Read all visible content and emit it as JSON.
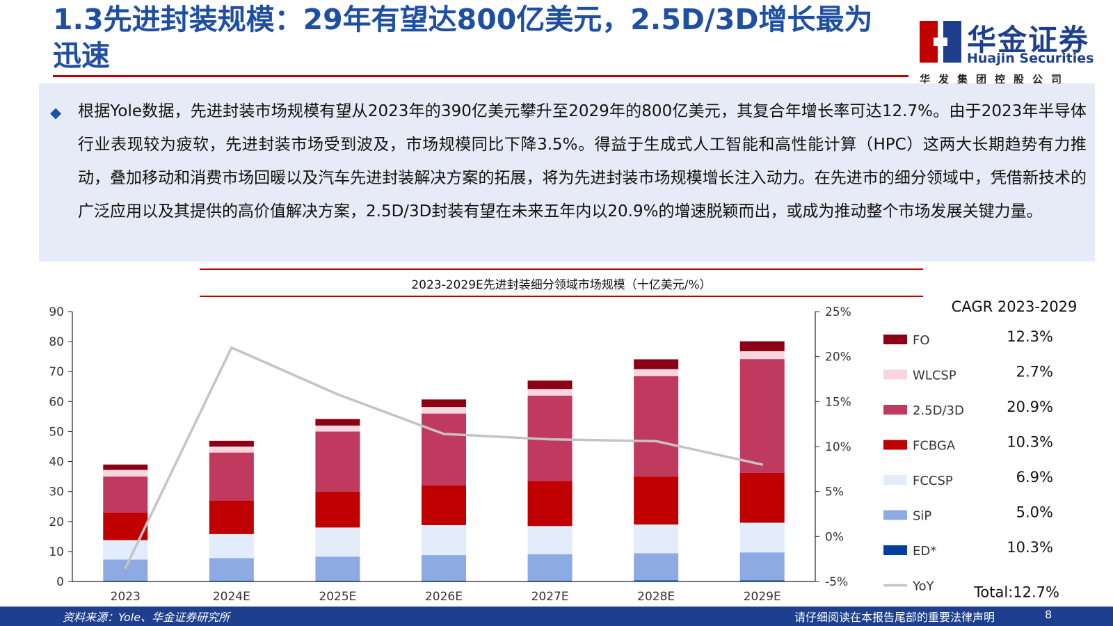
{
  "header": {
    "title": "1.3先进封装规模：29年有望达800亿美元，2.5D/3D增长最为迅速",
    "logo_cn": "华金证券",
    "logo_en": "Huajin Securities",
    "logo_sub": "华发集团控股公司",
    "brand_colors": {
      "blue": "#1d3f8e",
      "red": "#c00000"
    }
  },
  "summary": {
    "bullet": "◆",
    "text": "根据Yole数据，先进封装市场规模有望从2023年的390亿美元攀升至2029年的800亿美元，其复合年增长率可达12.7%。由于2023年半导体行业表现较为疲软，先进封装市场受到波及，市场规模同比下降3.5%。得益于生成式人工智能和高性能计算（HPC）这两大长期趋势有力推动，叠加移动和消费市场回暖以及汽车先进封装解决方案的拓展，将为先进封装市场规模增长注入动力。在先进市的细分领域中，凭借新技术的广泛应用以及其提供的高价值解决方案，2.5D/3D封装有望在未来五年内以20.9%的增速脱颖而出，或成为推动整个市场发展关键力量。"
  },
  "chart_data": {
    "type": "bar",
    "stacked": true,
    "title": "2023-2029E先进封装细分领域市场规模（十亿美元/%）",
    "categories": [
      "2023",
      "2024E",
      "2025E",
      "2026E",
      "2027E",
      "2028E",
      "2029E"
    ],
    "y_left": {
      "ylim": [
        0,
        90
      ],
      "ticks": [
        "0",
        "10",
        "20",
        "30",
        "40",
        "50",
        "60",
        "70",
        "80",
        "90"
      ]
    },
    "y_right": {
      "ylim": [
        -5,
        25
      ],
      "ticks": [
        "-5%",
        "0%",
        "5%",
        "10%",
        "15%",
        "20%",
        "25%"
      ]
    },
    "grid": false,
    "series": [
      {
        "name": "ED*",
        "color": "#003f9e",
        "values": [
          0.3,
          0.3,
          0.3,
          0.3,
          0.3,
          0.4,
          0.4
        ]
      },
      {
        "name": "SiP",
        "color": "#8eaae3",
        "values": [
          7.0,
          7.5,
          8.0,
          8.5,
          8.8,
          9.0,
          9.3
        ]
      },
      {
        "name": "FCCSP",
        "color": "#e3ecfa",
        "values": [
          6.5,
          8.0,
          9.7,
          10.0,
          9.4,
          9.6,
          9.9
        ]
      },
      {
        "name": "FCBGA",
        "color": "#c00000",
        "values": [
          9.2,
          11.2,
          12.0,
          13.2,
          15.0,
          16.0,
          16.6
        ]
      },
      {
        "name": "2.5D/3D",
        "color": "#c0395f",
        "values": [
          12.0,
          16.0,
          20.0,
          24.0,
          28.5,
          33.5,
          38.0
        ]
      },
      {
        "name": "WLCSP",
        "color": "#f8d6e0",
        "values": [
          2.2,
          2.0,
          2.0,
          2.2,
          2.2,
          2.3,
          2.6
        ]
      },
      {
        "name": "FO",
        "color": "#8b0015",
        "values": [
          1.8,
          1.9,
          2.2,
          2.5,
          2.8,
          3.3,
          3.3
        ]
      }
    ],
    "line": {
      "name": "YoY",
      "color": "#c4c4c4",
      "axis": "right",
      "values": [
        -3.5,
        21.0,
        15.8,
        11.4,
        10.8,
        10.6,
        8.0
      ]
    },
    "legend": {
      "placement": "right",
      "cagr_title": "CAGR 2023-2029",
      "items": [
        {
          "name": "FO",
          "color": "#8b0015",
          "cagr": "12.3%"
        },
        {
          "name": "WLCSP",
          "color": "#f8d6e0",
          "cagr": "2.7%"
        },
        {
          "name": "2.5D/3D",
          "color": "#c0395f",
          "cagr": "20.9%"
        },
        {
          "name": "FCBGA",
          "color": "#c00000",
          "cagr": "10.3%"
        },
        {
          "name": "FCCSP",
          "color": "#e3ecfa",
          "cagr": "6.9%"
        },
        {
          "name": "SiP",
          "color": "#8eaae3",
          "cagr": "5.0%"
        },
        {
          "name": "ED*",
          "color": "#003f9e",
          "cagr": "10.3%"
        },
        {
          "name": "YoY",
          "color": "#c4c4c4",
          "cagr": "Total:12.7%",
          "is_line": true
        }
      ]
    }
  },
  "footer": {
    "source": "资料来源：Yole、华金证券研究所",
    "legal": "请仔细阅读在本报告尾部的重要法律声明",
    "page": "8"
  }
}
